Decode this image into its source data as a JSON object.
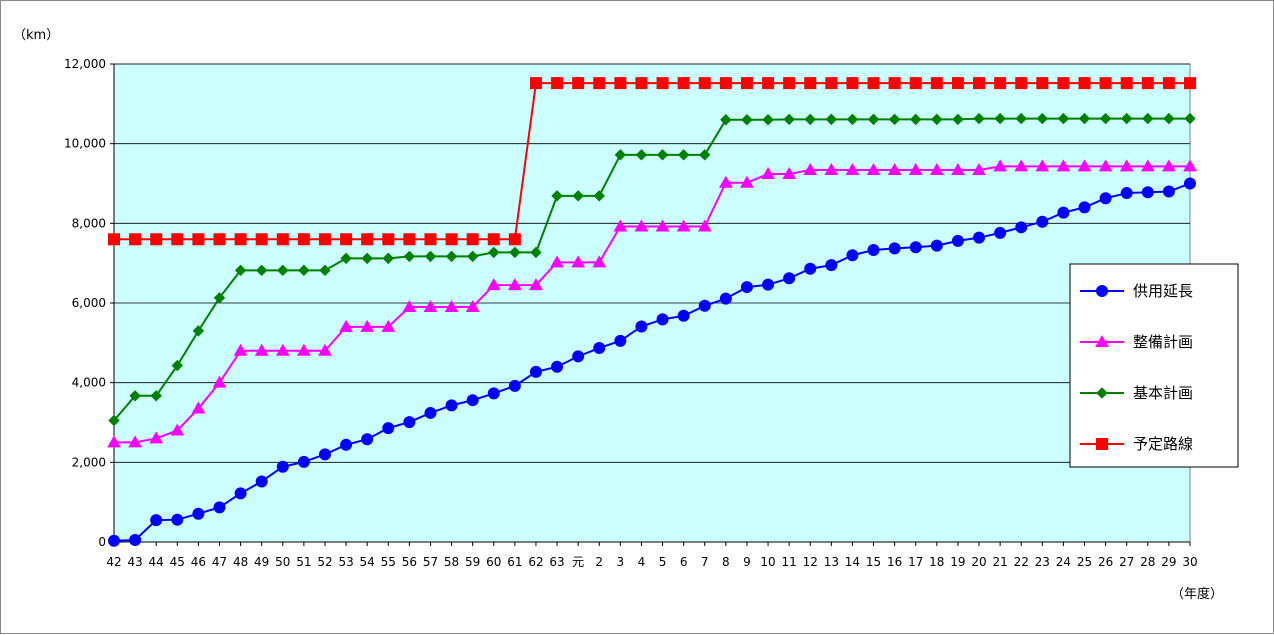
{
  "chart_data": {
    "type": "line",
    "ylabel": "（km）",
    "xlabel": "（年度）",
    "ylim": [
      0,
      12000
    ],
    "yticks": [
      "0",
      "2,000",
      "4,000",
      "6,000",
      "8,000",
      "10,000",
      "12,000"
    ],
    "ytick_values": [
      0,
      2000,
      4000,
      6000,
      8000,
      10000,
      12000
    ],
    "categories": [
      "42",
      "43",
      "44",
      "45",
      "46",
      "47",
      "48",
      "49",
      "50",
      "51",
      "52",
      "53",
      "54",
      "55",
      "56",
      "57",
      "58",
      "59",
      "60",
      "61",
      "62",
      "63",
      "元",
      "2",
      "3",
      "4",
      "5",
      "6",
      "7",
      "8",
      "9",
      "10",
      "11",
      "12",
      "13",
      "14",
      "15",
      "16",
      "17",
      "18",
      "19",
      "20",
      "21",
      "22",
      "23",
      "24",
      "25",
      "26",
      "27",
      "28",
      "29",
      "30"
    ],
    "grid": "horizontal",
    "background": "#ccffff",
    "legend_position": "right",
    "series": [
      {
        "name": "供用延長",
        "color": "#0000ff",
        "marker": "circle",
        "values": [
          30,
          50,
          550,
          560,
          710,
          870,
          1220,
          1520,
          1890,
          2010,
          2200,
          2440,
          2580,
          2860,
          3010,
          3240,
          3430,
          3560,
          3730,
          3920,
          4270,
          4400,
          4660,
          4870,
          5050,
          5410,
          5590,
          5680,
          5930,
          6110,
          6400,
          6460,
          6620,
          6860,
          6950,
          7200,
          7330,
          7370,
          7400,
          7440,
          7560,
          7640,
          7760,
          7900,
          8040,
          8270,
          8400,
          8630,
          8760,
          8780,
          8800,
          9000
        ]
      },
      {
        "name": "整備計画",
        "color": "#ff00ff",
        "marker": "triangle",
        "values": [
          2500,
          2500,
          2600,
          2800,
          3350,
          4000,
          4800,
          4800,
          4800,
          4800,
          4800,
          5400,
          5400,
          5400,
          5900,
          5900,
          5900,
          5900,
          6450,
          6450,
          6450,
          7020,
          7020,
          7020,
          7920,
          7920,
          7920,
          7920,
          7920,
          9020,
          9020,
          9240,
          9240,
          9340,
          9340,
          9340,
          9340,
          9340,
          9340,
          9340,
          9340,
          9340,
          9430,
          9430,
          9430,
          9430,
          9430,
          9430,
          9430,
          9430,
          9430,
          9430
        ]
      },
      {
        "name": "基本計画",
        "color": "#008000",
        "marker": "diamond",
        "values": [
          3050,
          3670,
          3670,
          4430,
          5300,
          6130,
          6820,
          6820,
          6820,
          6820,
          6820,
          7120,
          7120,
          7120,
          7170,
          7170,
          7170,
          7170,
          7270,
          7270,
          7270,
          8690,
          8690,
          8690,
          9720,
          9720,
          9720,
          9720,
          9720,
          10600,
          10600,
          10600,
          10610,
          10610,
          10610,
          10610,
          10610,
          10610,
          10610,
          10610,
          10610,
          10630,
          10630,
          10630,
          10630,
          10630,
          10630,
          10630,
          10630,
          10630,
          10630,
          10630
        ]
      },
      {
        "name": "予定路線",
        "color": "#ff0000",
        "marker": "square",
        "values": [
          7600,
          7600,
          7600,
          7600,
          7600,
          7600,
          7600,
          7600,
          7600,
          7600,
          7600,
          7600,
          7600,
          7600,
          7600,
          7600,
          7600,
          7600,
          7600,
          7600,
          11520,
          11520,
          11520,
          11520,
          11520,
          11520,
          11520,
          11520,
          11520,
          11520,
          11520,
          11520,
          11520,
          11520,
          11520,
          11520,
          11520,
          11520,
          11520,
          11520,
          11520,
          11520,
          11520,
          11520,
          11520,
          11520,
          11520,
          11520,
          11520,
          11520,
          11520,
          11520
        ]
      }
    ]
  }
}
